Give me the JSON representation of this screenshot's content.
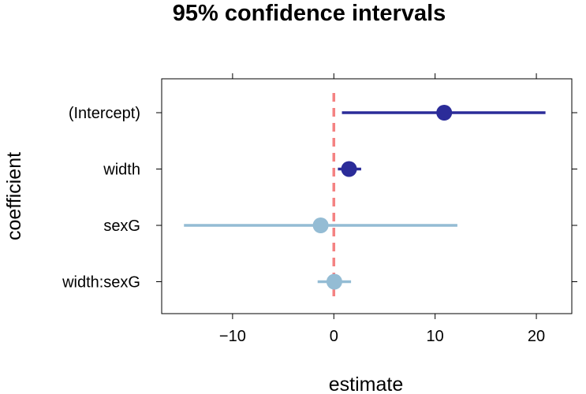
{
  "chart_data": {
    "type": "scatter",
    "title": "95% confidence intervals",
    "xlabel": "estimate",
    "ylabel": "coefficient",
    "xlim": [
      -17,
      23.5
    ],
    "xticks": [
      -10,
      0,
      10,
      20
    ],
    "xtick_labels": [
      "−10",
      "0",
      "10",
      "20"
    ],
    "categories": [
      "(Intercept)",
      "width",
      "sexG",
      "width:sexG"
    ],
    "estimates": [
      10.9,
      1.5,
      -1.3,
      0.05
    ],
    "lower": [
      0.8,
      0.4,
      -14.8,
      -1.6
    ],
    "upper": [
      20.9,
      2.7,
      12.2,
      1.7
    ],
    "point_colors": [
      "#2B2C99",
      "#2B2C99",
      "#94BCD4",
      "#94BCD4"
    ],
    "reference_line": {
      "x": 0,
      "color": "#F48282",
      "style": "dashed"
    },
    "grid": false
  }
}
